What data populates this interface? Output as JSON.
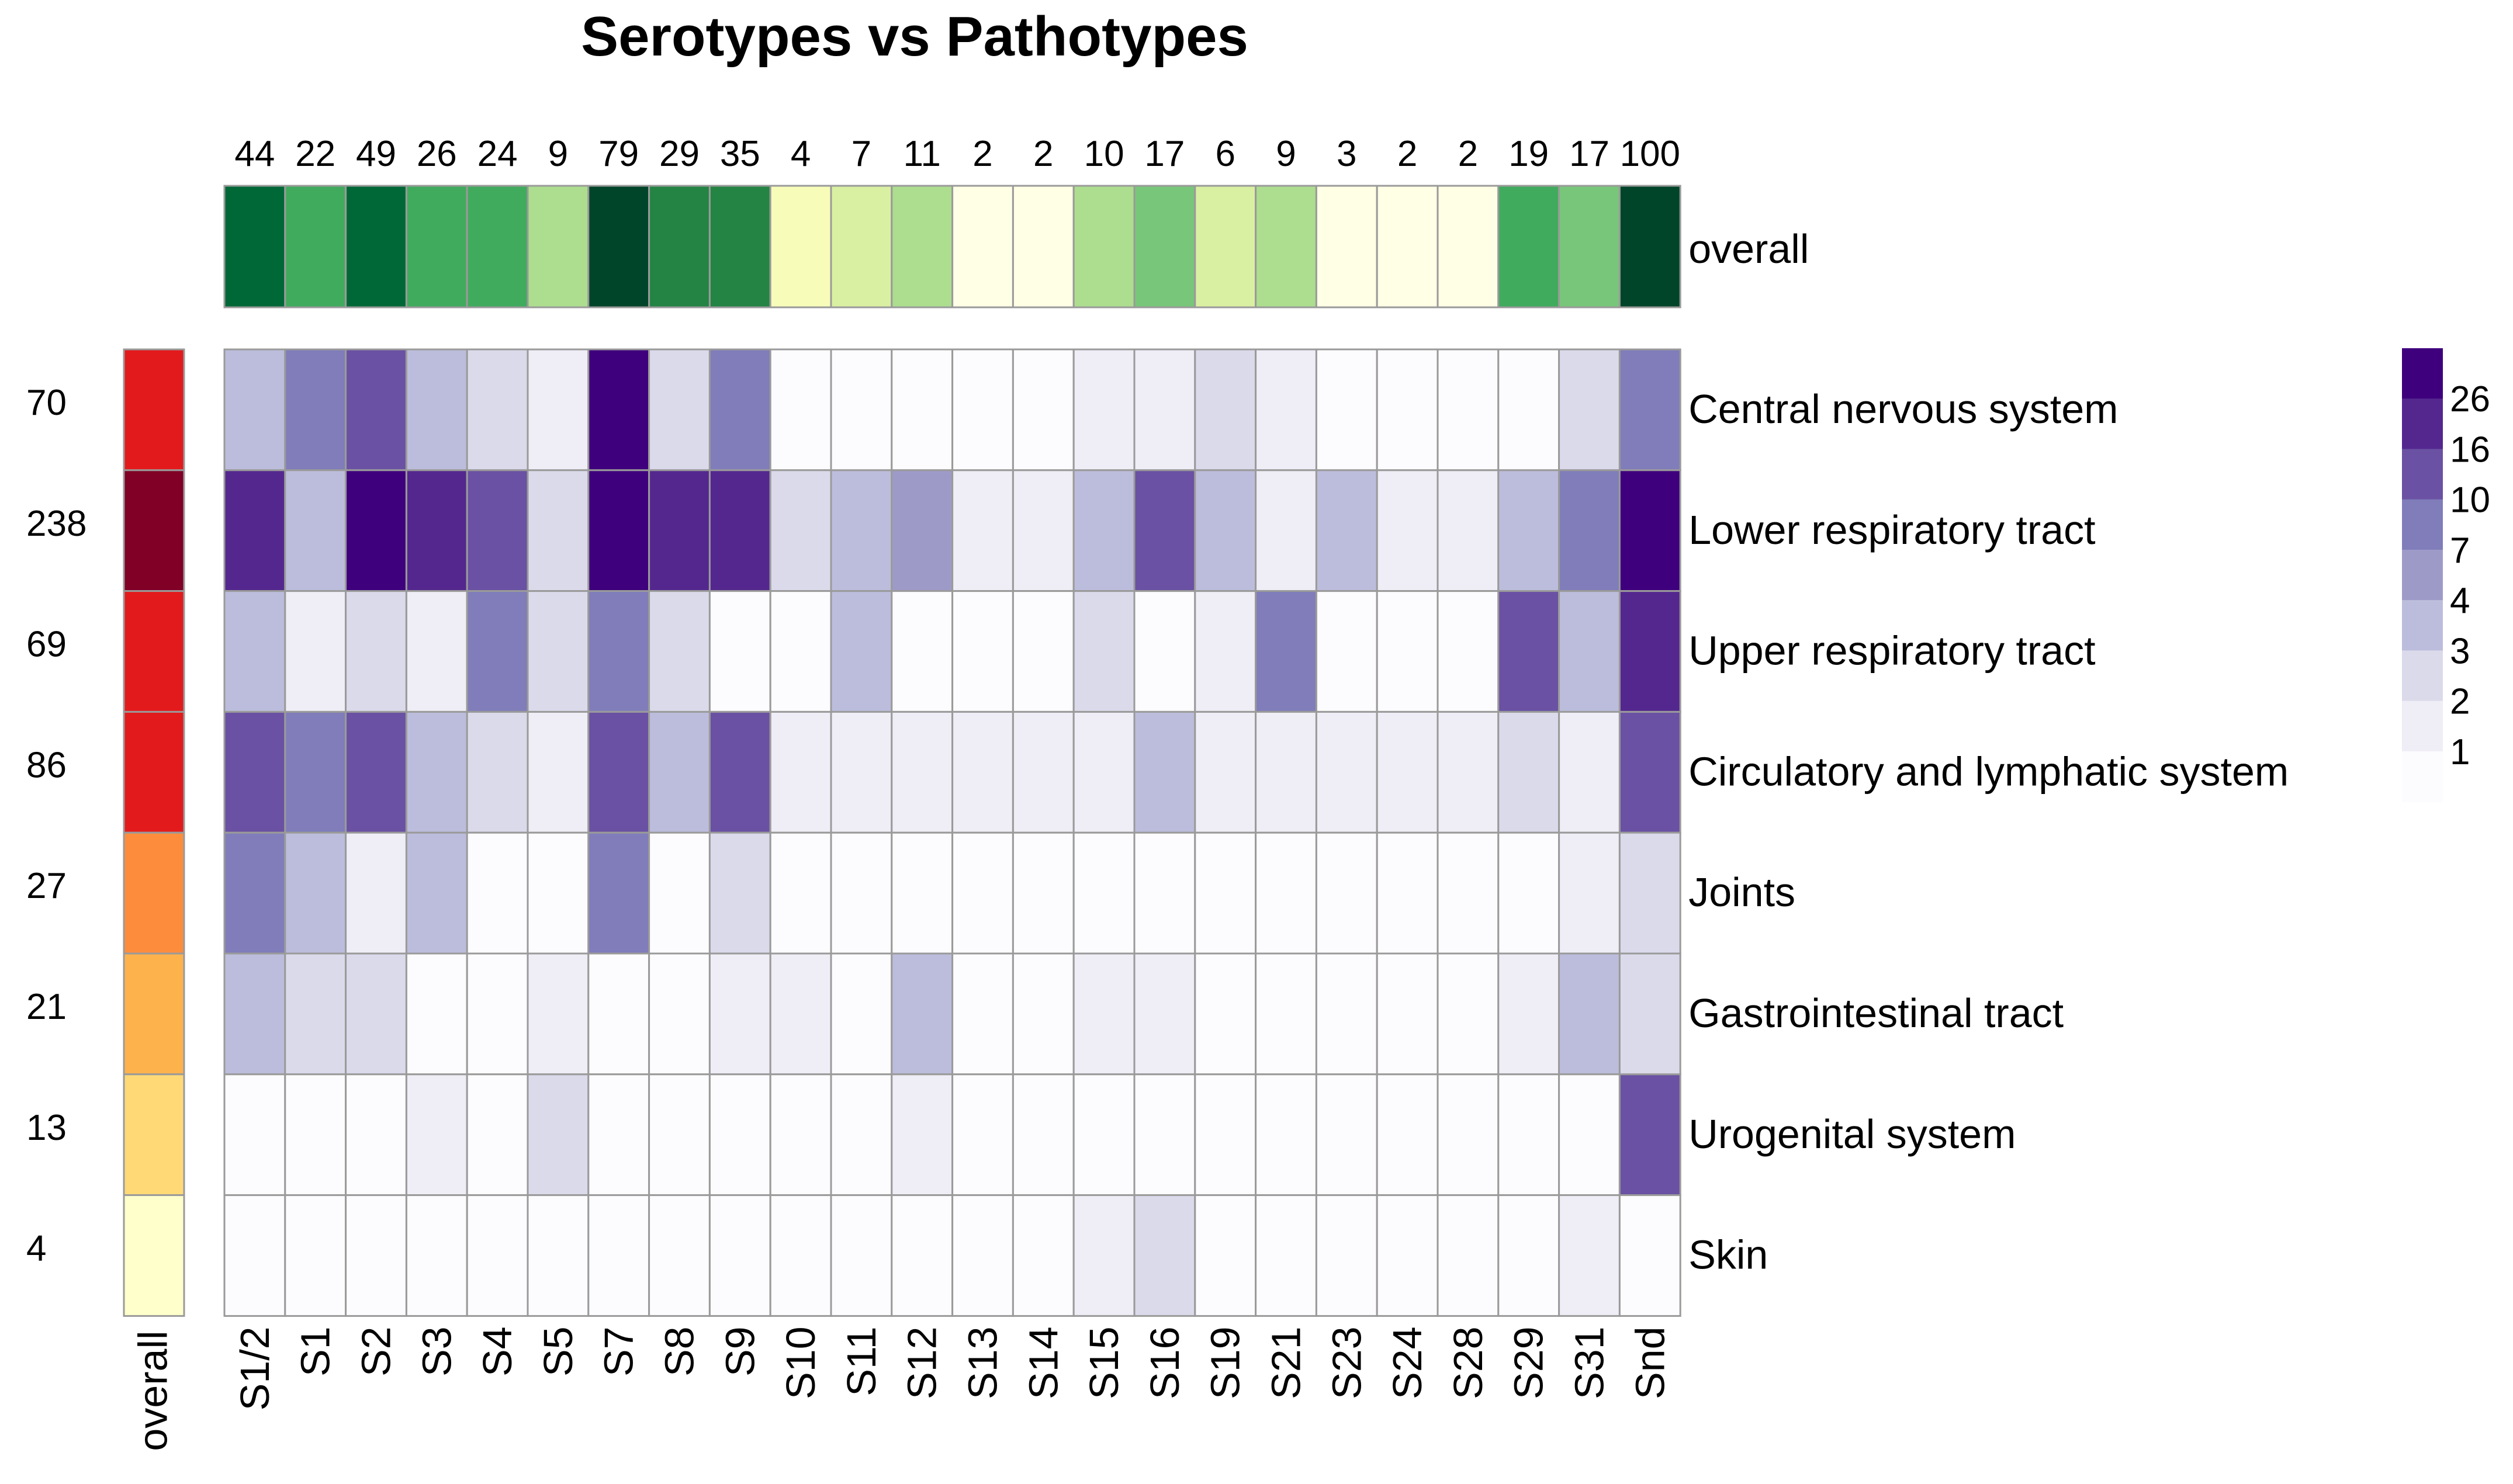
{
  "chart_data": {
    "type": "heatmap",
    "title": "Serotypes vs Pathotypes",
    "columns": [
      "S1/2",
      "S1",
      "S2",
      "S3",
      "S4",
      "S5",
      "S7",
      "S8",
      "S9",
      "S10",
      "S11",
      "S12",
      "S13",
      "S14",
      "S15",
      "S16",
      "S19",
      "S21",
      "S23",
      "S24",
      "S28",
      "S29",
      "S31",
      "Snd"
    ],
    "column_totals": [
      44,
      22,
      49,
      26,
      24,
      9,
      79,
      29,
      35,
      4,
      7,
      11,
      2,
      2,
      10,
      17,
      6,
      9,
      3,
      2,
      2,
      19,
      17,
      100
    ],
    "top_annotation_label": "overall",
    "rows": [
      "Central nervous system",
      "Lower respiratory tract",
      "Upper respiratory tract",
      "Circulatory and lymphatic system",
      "Joints",
      "Gastrointestinal tract",
      "Urogenital system",
      "Skin"
    ],
    "row_totals": [
      70,
      238,
      69,
      86,
      27,
      21,
      13,
      4
    ],
    "left_annotation_label": "overall",
    "matrix": [
      [
        3,
        5,
        7,
        3,
        2,
        1,
        16,
        2,
        5,
        0,
        0,
        0,
        0,
        0,
        1,
        1,
        2,
        1,
        0,
        0,
        0,
        0,
        2,
        5
      ],
      [
        10,
        3,
        16,
        10,
        7,
        2,
        16,
        10,
        10,
        2,
        3,
        4,
        1,
        1,
        3,
        7,
        3,
        1,
        3,
        1,
        1,
        3,
        5,
        26
      ],
      [
        3,
        1,
        2,
        1,
        5,
        2,
        5,
        2,
        0,
        0,
        3,
        0,
        0,
        0,
        2,
        0,
        1,
        5,
        0,
        0,
        0,
        7,
        3,
        10
      ],
      [
        7,
        5,
        7,
        3,
        2,
        1,
        7,
        3,
        7,
        1,
        1,
        1,
        1,
        1,
        1,
        3,
        1,
        1,
        1,
        1,
        1,
        2,
        1,
        7
      ],
      [
        5,
        3,
        1,
        3,
        0,
        0,
        5,
        0,
        2,
        0,
        0,
        0,
        0,
        0,
        0,
        0,
        0,
        0,
        0,
        0,
        0,
        0,
        1,
        2
      ],
      [
        3,
        2,
        2,
        0,
        0,
        1,
        0,
        0,
        1,
        1,
        0,
        3,
        0,
        0,
        1,
        1,
        0,
        0,
        0,
        0,
        0,
        1,
        3,
        2
      ],
      [
        0,
        0,
        0,
        1,
        0,
        2,
        0,
        0,
        0,
        0,
        0,
        1,
        0,
        0,
        0,
        0,
        0,
        0,
        0,
        0,
        0,
        0,
        0,
        7
      ],
      [
        0,
        0,
        0,
        0,
        0,
        0,
        0,
        0,
        0,
        0,
        0,
        0,
        0,
        0,
        1,
        2,
        0,
        0,
        0,
        0,
        0,
        0,
        1,
        0
      ]
    ],
    "legend": {
      "ticks": [
        "26",
        "16",
        "10",
        "7",
        "4",
        "3",
        "2",
        "1"
      ],
      "scale_steps": [
        0,
        1,
        2,
        3,
        4,
        5,
        7,
        10,
        16,
        26
      ],
      "colors": [
        "#fcfbfd",
        "#efedf5",
        "#dadaeb",
        "#bcbddc",
        "#9e9ac8",
        "#807dba",
        "#6a51a3",
        "#54278f",
        "#3f007d"
      ]
    },
    "overall_colors": {
      "columns": [
        "#006837",
        "#41ab5d",
        "#006837",
        "#41ab5d",
        "#41ab5d",
        "#addd8e",
        "#004529",
        "#238443",
        "#238443",
        "#f7fcb9",
        "#d9f0a3",
        "#addd8e",
        "#ffffe5",
        "#ffffe5",
        "#addd8e",
        "#78c679",
        "#d9f0a3",
        "#addd8e",
        "#ffffe5",
        "#ffffe5",
        "#ffffe5",
        "#41ab5d",
        "#78c679",
        "#004529"
      ],
      "rows": [
        "#e31a1c",
        "#800026",
        "#e31a1c",
        "#e31a1c",
        "#fd8d3c",
        "#feb24c",
        "#fed976",
        "#ffffcc"
      ]
    }
  }
}
